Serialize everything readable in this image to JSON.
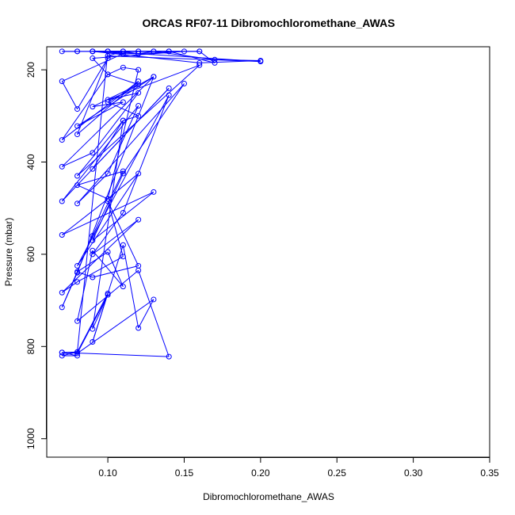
{
  "chart_data": {
    "type": "line",
    "title": "ORCAS RF07-11 Dibromochloromethane_AWAS",
    "xlabel": "Dibromochloromethane_AWAS",
    "ylabel": "Pressure (mbar)",
    "xlim": [
      0.06,
      0.35
    ],
    "ylim": [
      1040,
      150
    ],
    "y_inverted": true,
    "x_ticks": [
      "0.10",
      "0.15",
      "0.20",
      "0.25",
      "0.30",
      "0.35"
    ],
    "y_ticks": [
      "200",
      "400",
      "600",
      "800",
      "1000"
    ],
    "grid": false,
    "legend": "none",
    "series_color": "#0000ff",
    "marker": "open-circle",
    "series": [
      {
        "x": [
          0.09,
          0.09,
          0.11,
          0.07,
          0.08,
          0.1,
          0.08,
          0.12,
          0.07,
          0.1,
          0.12,
          0.09,
          0.11,
          0.08,
          0.13,
          0.07,
          0.09,
          0.12,
          0.1,
          0.16,
          0.08,
          0.11,
          0.09,
          0.14,
          0.07,
          0.12,
          0.1,
          0.08,
          0.15,
          0.11,
          0.09,
          0.13,
          0.07,
          0.1,
          0.12,
          0.08,
          0.14,
          0.11,
          0.09,
          0.12,
          0.07,
          0.08,
          0.11,
          0.1,
          0.12,
          0.09,
          0.08,
          0.1,
          0.11,
          0.09,
          0.08,
          0.12,
          0.14,
          0.07,
          0.08,
          0.1,
          0.09,
          0.11,
          0.12,
          0.13,
          0.08,
          0.1,
          0.09,
          0.11,
          0.12,
          0.1,
          0.13,
          0.08,
          0.07,
          0.09,
          0.11,
          0.08,
          0.1,
          0.12,
          0.11,
          0.1,
          0.09,
          0.15,
          0.12,
          0.11,
          0.1,
          0.16,
          0.17,
          0.14,
          0.13,
          0.12,
          0.11,
          0.09,
          0.1,
          0.12,
          0.2,
          0.1,
          0.11,
          0.16,
          0.09,
          0.16,
          0.2,
          0.17,
          0.13,
          0.09,
          0.11,
          0.12,
          0.14,
          0.1,
          0.12,
          0.08,
          0.07,
          0.08,
          0.14,
          0.1,
          0.08,
          0.07,
          0.08,
          0.07
        ],
        "y": [
          160,
          160,
          165,
          225,
          285,
          175,
          340,
          225,
          352,
          210,
          232,
          280,
          270,
          322,
          215,
          410,
          380,
          250,
          265,
          190,
          430,
          310,
          415,
          240,
          485,
          278,
          425,
          490,
          230,
          425,
          570,
          465,
          558,
          480,
          425,
          625,
          255,
          510,
          600,
          525,
          683,
          660,
          605,
          485,
          625,
          650,
          638,
          595,
          670,
          592,
          745,
          635,
          822,
          813,
          812,
          685,
          790,
          580,
          760,
          698,
          815,
          688,
          762,
          310,
          300,
          270,
          215,
          640,
          715,
          560,
          420,
          450,
          480,
          200,
          195,
          210,
          175,
          160,
          165,
          165,
          160,
          160,
          185,
          160,
          160,
          165,
          160,
          160,
          160,
          165,
          182,
          170,
          160,
          160,
          160,
          185,
          180,
          178,
          160,
          160,
          160,
          160,
          160,
          160,
          160,
          160,
          160,
          160,
          160,
          160,
          812,
          820,
          820,
          813
        ]
      }
    ]
  }
}
